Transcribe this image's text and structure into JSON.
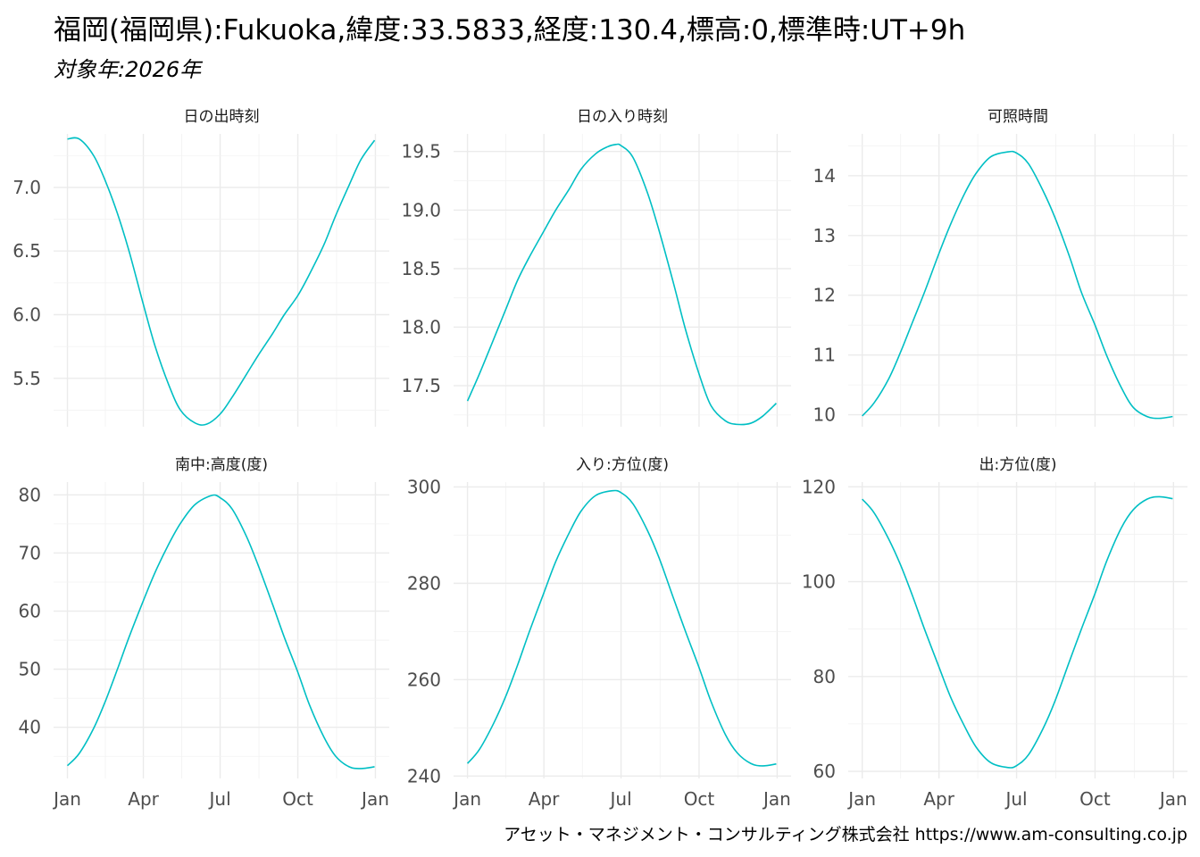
{
  "title": "福岡(福岡県):Fukuoka,緯度:33.5833,経度:130.4,標高:0,標準時:UT+9h",
  "subtitle": "対象年:2026年",
  "caption": "アセット・マネジメント・コンサルティング株式会社 https://www.am-consulting.co.jp",
  "colors": {
    "series": "#00BFC4",
    "grid": "#ebebeb",
    "background": "#ffffff"
  },
  "chart_data": [
    {
      "type": "line",
      "title": "日の出時刻",
      "x_tick_labels": [
        "Jan",
        "Apr",
        "Jul",
        "Oct",
        "Jan"
      ],
      "x_ticks": [
        "2026-01-01",
        "2026-04-01",
        "2026-07-01",
        "2026-10-01",
        "2027-01-01"
      ],
      "ylim": [
        5.12,
        7.42
      ],
      "y_ticks": [
        5.5,
        6.0,
        6.5,
        7.0
      ],
      "y_tick_labels": [
        "5.5",
        "6.0",
        "6.5",
        "7.0"
      ],
      "x": [
        "2026-01-01",
        "2026-01-15",
        "2026-02-01",
        "2026-02-15",
        "2026-03-01",
        "2026-03-15",
        "2026-04-01",
        "2026-04-15",
        "2026-05-01",
        "2026-05-15",
        "2026-06-01",
        "2026-06-15",
        "2026-07-01",
        "2026-07-15",
        "2026-08-01",
        "2026-08-15",
        "2026-09-01",
        "2026-09-15",
        "2026-10-01",
        "2026-10-15",
        "2026-11-01",
        "2026-11-15",
        "2026-12-01",
        "2026-12-15",
        "2026-12-31"
      ],
      "y": [
        7.38,
        7.38,
        7.25,
        7.05,
        6.8,
        6.5,
        6.08,
        5.75,
        5.45,
        5.25,
        5.15,
        5.14,
        5.22,
        5.35,
        5.53,
        5.68,
        5.85,
        6.0,
        6.15,
        6.32,
        6.55,
        6.78,
        7.02,
        7.22,
        7.37
      ],
      "grid": true
    },
    {
      "type": "line",
      "title": "日の入り時刻",
      "x_tick_labels": [
        "Jan",
        "Apr",
        "Jul",
        "Oct",
        "Jan"
      ],
      "x_ticks": [
        "2026-01-01",
        "2026-04-01",
        "2026-07-01",
        "2026-10-01",
        "2027-01-01"
      ],
      "ylim": [
        17.15,
        19.65
      ],
      "y_ticks": [
        17.5,
        18.0,
        18.5,
        19.0,
        19.5
      ],
      "y_tick_labels": [
        "17.5",
        "18.0",
        "18.5",
        "19.0",
        "19.5"
      ],
      "x": [
        "2026-01-01",
        "2026-01-15",
        "2026-02-01",
        "2026-02-15",
        "2026-03-01",
        "2026-03-15",
        "2026-04-01",
        "2026-04-15",
        "2026-05-01",
        "2026-05-15",
        "2026-06-01",
        "2026-06-15",
        "2026-06-25",
        "2026-07-01",
        "2026-07-15",
        "2026-08-01",
        "2026-08-15",
        "2026-09-01",
        "2026-09-15",
        "2026-10-01",
        "2026-10-15",
        "2026-11-01",
        "2026-11-15",
        "2026-12-01",
        "2026-12-15",
        "2026-12-31"
      ],
      "y": [
        17.37,
        17.6,
        17.9,
        18.15,
        18.4,
        18.6,
        18.82,
        19.0,
        19.18,
        19.35,
        19.48,
        19.54,
        19.56,
        19.55,
        19.45,
        19.15,
        18.82,
        18.37,
        17.98,
        17.6,
        17.33,
        17.2,
        17.17,
        17.18,
        17.24,
        17.35
      ],
      "grid": true
    },
    {
      "type": "line",
      "title": "可照時間",
      "x_tick_labels": [
        "Jan",
        "Apr",
        "Jul",
        "Oct",
        "Jan"
      ],
      "x_ticks": [
        "2026-01-01",
        "2026-04-01",
        "2026-07-01",
        "2026-10-01",
        "2027-01-01"
      ],
      "ylim": [
        9.8,
        14.7
      ],
      "y_ticks": [
        10,
        11,
        12,
        13,
        14
      ],
      "y_tick_labels": [
        "10",
        "11",
        "12",
        "13",
        "14"
      ],
      "x": [
        "2026-01-01",
        "2026-01-15",
        "2026-02-01",
        "2026-02-15",
        "2026-03-01",
        "2026-03-15",
        "2026-04-01",
        "2026-04-15",
        "2026-05-01",
        "2026-05-15",
        "2026-06-01",
        "2026-06-21",
        "2026-07-01",
        "2026-07-15",
        "2026-08-01",
        "2026-08-15",
        "2026-09-01",
        "2026-09-15",
        "2026-10-01",
        "2026-10-15",
        "2026-11-01",
        "2026-11-15",
        "2026-12-01",
        "2026-12-15",
        "2026-12-31"
      ],
      "y": [
        9.98,
        10.2,
        10.6,
        11.05,
        11.55,
        12.05,
        12.7,
        13.2,
        13.7,
        14.05,
        14.32,
        14.4,
        14.38,
        14.2,
        13.75,
        13.3,
        12.65,
        12.05,
        11.5,
        10.98,
        10.45,
        10.12,
        9.97,
        9.94,
        9.97
      ],
      "grid": true
    },
    {
      "type": "line",
      "title": "南中:高度(度)",
      "x_tick_labels": [
        "Jan",
        "Apr",
        "Jul",
        "Oct",
        "Jan"
      ],
      "x_ticks": [
        "2026-01-01",
        "2026-04-01",
        "2026-07-01",
        "2026-10-01",
        "2027-01-01"
      ],
      "ylim": [
        31.2,
        82.2
      ],
      "y_ticks": [
        40,
        50,
        60,
        70,
        80
      ],
      "y_tick_labels": [
        "40",
        "50",
        "60",
        "70",
        "80"
      ],
      "x": [
        "2026-01-01",
        "2026-01-15",
        "2026-02-01",
        "2026-02-15",
        "2026-03-01",
        "2026-03-15",
        "2026-04-01",
        "2026-04-15",
        "2026-05-01",
        "2026-05-15",
        "2026-06-01",
        "2026-06-21",
        "2026-07-01",
        "2026-07-15",
        "2026-08-01",
        "2026-08-15",
        "2026-09-01",
        "2026-09-15",
        "2026-10-01",
        "2026-10-15",
        "2026-11-01",
        "2026-11-15",
        "2026-12-01",
        "2026-12-15",
        "2026-12-31"
      ],
      "y": [
        33.4,
        35.5,
        39.8,
        44.5,
        49.9,
        55.5,
        61.8,
        66.7,
        71.5,
        75.1,
        78.3,
        79.9,
        79.5,
        77.6,
        72.9,
        67.9,
        61.2,
        55.5,
        49.5,
        43.8,
        38.3,
        35.0,
        33.2,
        32.9,
        33.2
      ],
      "grid": true
    },
    {
      "type": "line",
      "title": "入り:方位(度)",
      "x_tick_labels": [
        "Jan",
        "Apr",
        "Jul",
        "Oct",
        "Jan"
      ],
      "x_ticks": [
        "2026-01-01",
        "2026-04-01",
        "2026-07-01",
        "2026-10-01",
        "2027-01-01"
      ],
      "ylim": [
        239.5,
        301.0
      ],
      "y_ticks": [
        240,
        260,
        280,
        300
      ],
      "y_tick_labels": [
        "240",
        "260",
        "280",
        "300"
      ],
      "x": [
        "2026-01-01",
        "2026-01-15",
        "2026-02-01",
        "2026-02-15",
        "2026-03-01",
        "2026-03-15",
        "2026-04-01",
        "2026-04-15",
        "2026-05-01",
        "2026-05-15",
        "2026-06-01",
        "2026-06-21",
        "2026-07-01",
        "2026-07-15",
        "2026-08-01",
        "2026-08-15",
        "2026-09-01",
        "2026-09-15",
        "2026-10-01",
        "2026-10-15",
        "2026-11-01",
        "2026-11-15",
        "2026-12-01",
        "2026-12-15",
        "2026-12-31"
      ],
      "y": [
        242.6,
        245.5,
        251.0,
        256.5,
        263.0,
        270.0,
        278.0,
        284.5,
        290.5,
        295.0,
        298.2,
        299.2,
        298.8,
        296.5,
        291.0,
        285.2,
        276.8,
        270.0,
        262.5,
        255.5,
        248.6,
        244.8,
        242.6,
        242.1,
        242.5
      ],
      "grid": true
    },
    {
      "type": "line",
      "title": "出:方位(度)",
      "x_tick_labels": [
        "Jan",
        "Apr",
        "Jul",
        "Oct",
        "Jan"
      ],
      "x_ticks": [
        "2026-01-01",
        "2026-04-01",
        "2026-07-01",
        "2026-10-01",
        "2027-01-01"
      ],
      "ylim": [
        58.5,
        121.0
      ],
      "y_ticks": [
        60,
        80,
        100,
        120
      ],
      "y_tick_labels": [
        "60",
        "80",
        "100",
        "120"
      ],
      "x": [
        "2026-01-01",
        "2026-01-15",
        "2026-02-01",
        "2026-02-15",
        "2026-03-01",
        "2026-03-15",
        "2026-04-01",
        "2026-04-15",
        "2026-05-01",
        "2026-05-15",
        "2026-06-01",
        "2026-06-21",
        "2026-07-01",
        "2026-07-15",
        "2026-08-01",
        "2026-08-15",
        "2026-09-01",
        "2026-09-15",
        "2026-10-01",
        "2026-10-15",
        "2026-11-01",
        "2026-11-15",
        "2026-12-01",
        "2026-12-15",
        "2026-12-31"
      ],
      "y": [
        117.4,
        114.5,
        109.0,
        103.5,
        97.0,
        90.0,
        82.0,
        75.5,
        69.5,
        65.0,
        61.8,
        60.8,
        61.2,
        63.5,
        69.0,
        74.8,
        83.2,
        90.0,
        97.5,
        104.5,
        111.4,
        115.2,
        117.4,
        117.9,
        117.5
      ],
      "grid": true
    }
  ]
}
